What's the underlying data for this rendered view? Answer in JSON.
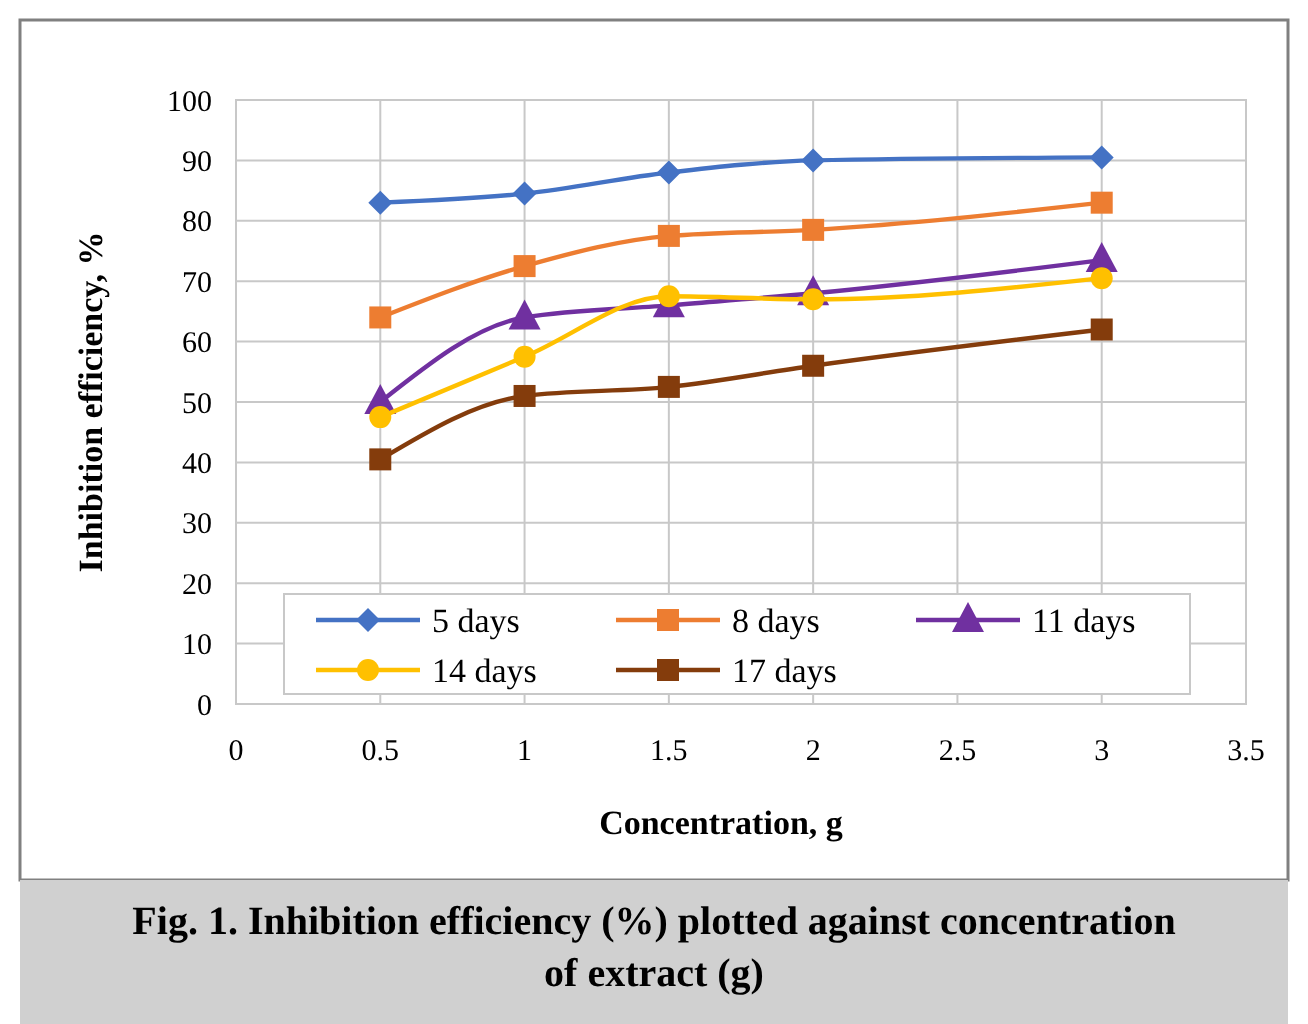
{
  "chart_data": {
    "type": "line",
    "title": "Fig. 1. Inhibition efficiency (%) plotted against concentration of extract (g)",
    "xlabel": "Concentration, g",
    "ylabel": "Inhibition efficiency, %",
    "x": [
      0.5,
      1,
      1.5,
      2,
      3
    ],
    "series": [
      {
        "name": "5 days",
        "color": "#4472c4",
        "marker": "diamond",
        "values": [
          83,
          84.5,
          88,
          90,
          90.5
        ]
      },
      {
        "name": "8 days",
        "color": "#ed7d31",
        "marker": "square",
        "values": [
          64,
          72.5,
          77.5,
          78.5,
          83
        ]
      },
      {
        "name": "11 days",
        "color": "#7030a0",
        "marker": "triangle",
        "values": [
          50,
          64,
          66,
          68,
          73.5
        ]
      },
      {
        "name": "14 days",
        "color": "#ffc000",
        "marker": "circle",
        "values": [
          47.5,
          57.5,
          67.5,
          67,
          70.5
        ]
      },
      {
        "name": "17 days",
        "color": "#843c0c",
        "marker": "square",
        "values": [
          40.5,
          51,
          52.5,
          56,
          62
        ]
      }
    ],
    "xlim": [
      0,
      3.5
    ],
    "xticks": [
      0,
      0.5,
      1,
      1.5,
      2,
      2.5,
      3,
      3.5
    ],
    "ylim": [
      0,
      100
    ],
    "yticks": [
      0,
      10,
      20,
      30,
      40,
      50,
      60,
      70,
      80,
      90,
      100
    ],
    "grid": true,
    "legend": "bottom",
    "line_style": "solid"
  }
}
